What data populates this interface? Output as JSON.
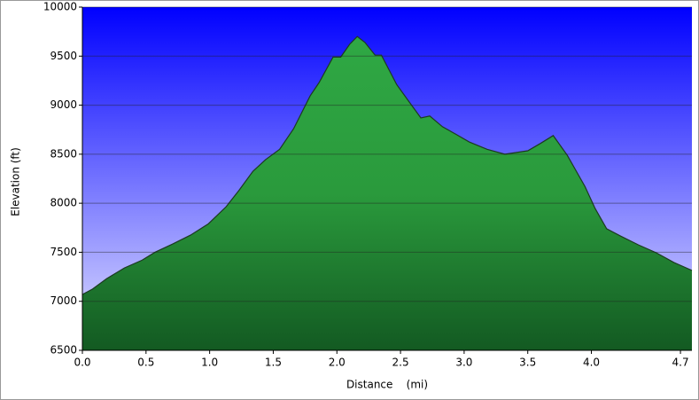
{
  "chart_data": {
    "type": "area",
    "xlabel": "Distance    (mi)",
    "ylabel": "Elevation (ft)",
    "x": [
      0,
      0.08,
      0.19,
      0.33,
      0.47,
      0.57,
      0.71,
      0.85,
      0.99,
      1.13,
      1.23,
      1.34,
      1.44,
      1.55,
      1.66,
      1.79,
      1.86,
      1.97,
      2.03,
      2.1,
      2.16,
      2.22,
      2.3,
      2.35,
      2.47,
      2.57,
      2.66,
      2.73,
      2.83,
      2.94,
      3.04,
      3.18,
      3.32,
      3.5,
      3.6,
      3.7,
      3.81,
      3.95,
      4.03,
      4.12,
      4.23,
      4.37,
      4.51,
      4.65,
      4.79
    ],
    "values": [
      7070,
      7125,
      7230,
      7340,
      7420,
      7500,
      7585,
      7675,
      7790,
      7965,
      8130,
      8325,
      8445,
      8550,
      8760,
      9095,
      9230,
      9490,
      9490,
      9620,
      9700,
      9640,
      9510,
      9510,
      9210,
      9030,
      8870,
      8890,
      8780,
      8700,
      8625,
      8550,
      8500,
      8535,
      8610,
      8690,
      8490,
      8170,
      7945,
      7740,
      7665,
      7575,
      7495,
      7395,
      7315
    ],
    "color": "#2ea043",
    "xlim": [
      0,
      4.79
    ],
    "xticks": [
      {
        "value": 0,
        "label": "0.0"
      },
      0.5,
      {
        "value": 1,
        "label": "1.0"
      },
      1.5,
      {
        "value": 2,
        "label": "2.0"
      },
      2.5,
      {
        "value": 3,
        "label": "3.0"
      },
      3.5,
      {
        "value": 4,
        "label": "4.0"
      },
      4.7
    ],
    "ylim": [
      6500,
      10000
    ],
    "yticks": [
      6500,
      7000,
      7500,
      8000,
      8500,
      9000,
      9500,
      10000
    ],
    "grid": true
  }
}
